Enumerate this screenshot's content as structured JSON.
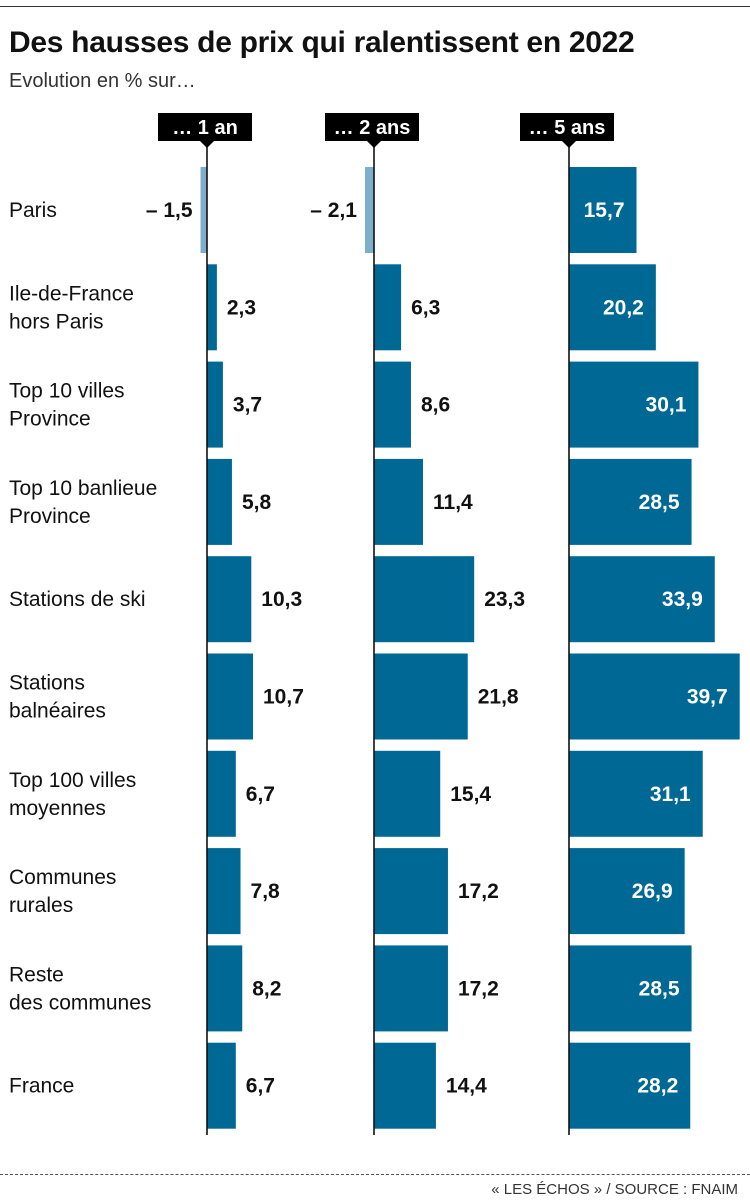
{
  "title": "Des hausses de prix qui ralentissent en 2022",
  "subtitle": "Evolution en % sur…",
  "source": "« LES ÉCHOS » / SOURCE : FNAIM",
  "colors": {
    "bar": "#006894",
    "negative_bar": "#7fadcc",
    "header_bg": "#000000",
    "header_text": "#ffffff"
  },
  "chart_data": {
    "type": "bar",
    "orientation": "horizontal",
    "categories": [
      [
        "Paris"
      ],
      [
        "Ile-de-France",
        "hors Paris"
      ],
      [
        "Top 10 villes",
        "Province"
      ],
      [
        "Top 10 banlieue",
        "Province"
      ],
      [
        "Stations de ski"
      ],
      [
        "Stations",
        "balnéaires"
      ],
      [
        "Top 100 villes",
        "moyennes"
      ],
      [
        "Communes",
        "rurales"
      ],
      [
        "Reste",
        "des communes"
      ],
      [
        "France"
      ]
    ],
    "series": [
      {
        "name": "… 1 an",
        "values": [
          -1.5,
          2.3,
          3.7,
          5.8,
          10.3,
          10.7,
          6.7,
          7.8,
          8.2,
          6.7
        ],
        "labels": [
          "– 1,5",
          "2,3",
          "3,7",
          "5,8",
          "10,3",
          "10,7",
          "6,7",
          "7,8",
          "8,2",
          "6,7"
        ]
      },
      {
        "name": "… 2 ans",
        "values": [
          -2.1,
          6.3,
          8.6,
          11.4,
          23.3,
          21.8,
          15.4,
          17.2,
          17.2,
          14.4
        ],
        "labels": [
          "– 2,1",
          "6,3",
          "8,6",
          "11,4",
          "23,3",
          "21,8",
          "15,4",
          "17,2",
          "17,2",
          "14,4"
        ]
      },
      {
        "name": "… 5 ans",
        "values": [
          15.7,
          20.2,
          30.1,
          28.5,
          33.9,
          39.7,
          31.1,
          26.9,
          28.5,
          28.2
        ],
        "labels": [
          "15,7",
          "20,2",
          "30,1",
          "28,5",
          "33,9",
          "39,7",
          "31,1",
          "26,9",
          "28,5",
          "28,2"
        ]
      }
    ]
  }
}
